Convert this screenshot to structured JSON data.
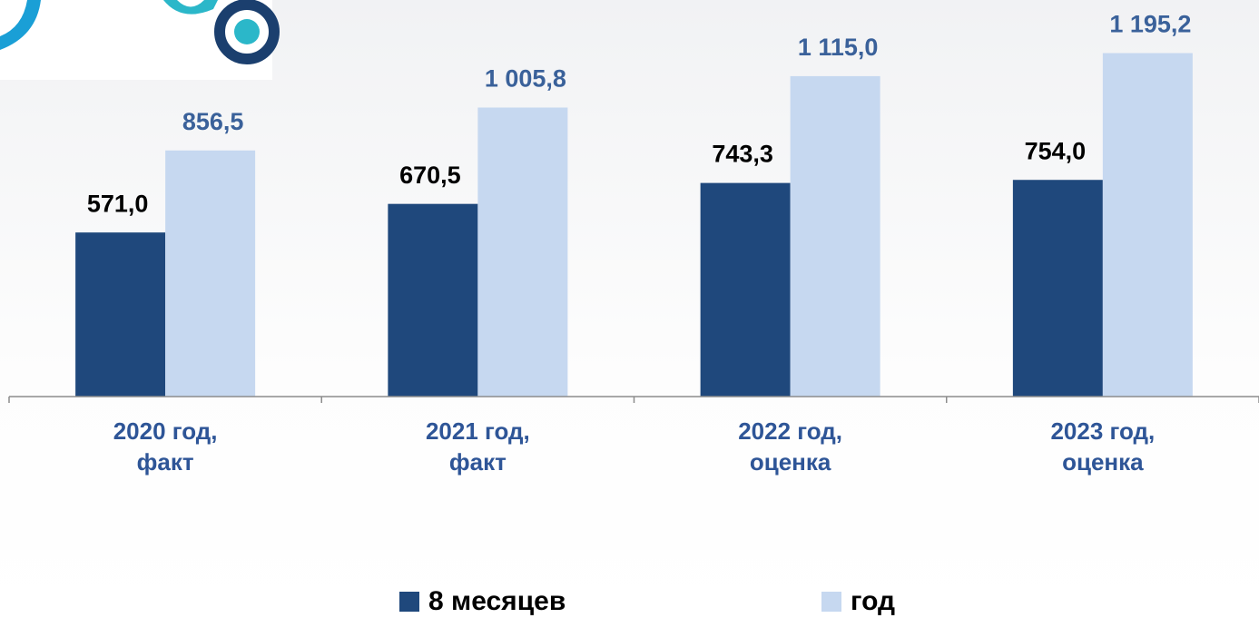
{
  "chart_data": {
    "type": "bar",
    "categories": [
      "2020 год, факт",
      "2021 год, факт",
      "2022 год, оценка",
      "2023 год, оценка"
    ],
    "series": [
      {
        "name": "8 месяцев",
        "color": "#1f487c",
        "values": [
          571.0,
          670.5,
          743.3,
          754.0
        ],
        "value_labels": [
          "571,0",
          "670,5",
          "743,3",
          "754,0"
        ]
      },
      {
        "name": "год",
        "color": "#c6d8f0",
        "values": [
          856.5,
          1005.8,
          1115.0,
          1195.2
        ],
        "value_labels": [
          "856,5",
          "1 005,8",
          "1 115,0",
          "1 195,2"
        ]
      }
    ],
    "ylim": [
      0,
      1200
    ]
  }
}
